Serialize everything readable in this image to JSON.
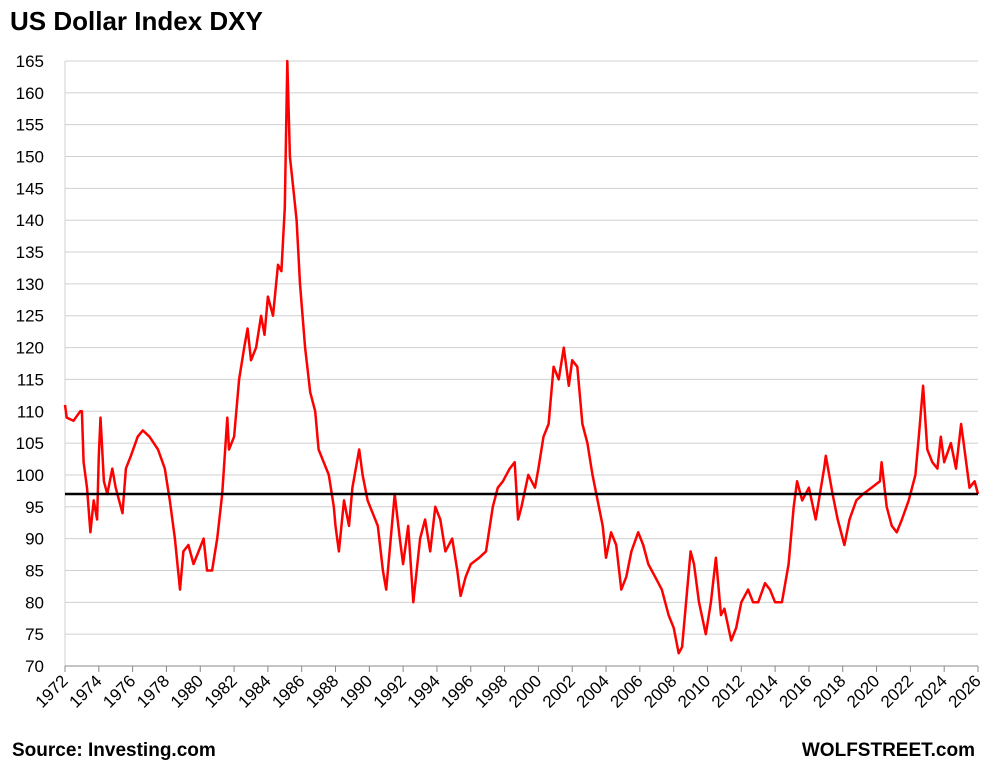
{
  "chart_data": {
    "type": "line",
    "title": "US Dollar Index DXY",
    "source": "Source: Investing.com",
    "credit": "WOLFSTREET.com",
    "x": [
      1972,
      1972.1,
      1972.5,
      1972.9,
      1973,
      1973.1,
      1973.3,
      1973.5,
      1973.7,
      1973.9,
      1974,
      1974.1,
      1974.3,
      1974.5,
      1974.8,
      1975,
      1975.2,
      1975.4,
      1975.6,
      1975.9,
      1976.3,
      1976.6,
      1977,
      1977.5,
      1977.9,
      1978.2,
      1978.5,
      1978.8,
      1979,
      1979.3,
      1979.6,
      1979.9,
      1980.2,
      1980.4,
      1980.7,
      1981,
      1981.3,
      1981.6,
      1981.7,
      1982,
      1982.3,
      1982.6,
      1982.8,
      1983,
      1983.3,
      1983.6,
      1983.8,
      1984,
      1984.3,
      1984.6,
      1984.8,
      1985,
      1985.15,
      1985.3,
      1985.5,
      1985.7,
      1985.9,
      1986.2,
      1986.5,
      1986.8,
      1987,
      1987.3,
      1987.6,
      1987.9,
      1988,
      1988.2,
      1988.5,
      1988.8,
      1989,
      1989.4,
      1989.6,
      1989.9,
      1990.2,
      1990.5,
      1990.8,
      1991,
      1991.2,
      1991.5,
      1991.8,
      1992,
      1992.3,
      1992.6,
      1992.8,
      1993,
      1993.3,
      1993.6,
      1993.9,
      1994.2,
      1994.5,
      1994.9,
      1995.2,
      1995.4,
      1995.7,
      1996,
      1996.5,
      1996.9,
      1997.3,
      1997.6,
      1997.9,
      1998.3,
      1998.6,
      1998.8,
      1999,
      1999.4,
      1999.8,
      2000,
      2000.3,
      2000.6,
      2000.9,
      2001.2,
      2001.5,
      2001.8,
      2002,
      2002.3,
      2002.6,
      2002.9,
      2003.2,
      2003.5,
      2003.8,
      2004,
      2004.3,
      2004.6,
      2004.9,
      2005.2,
      2005.5,
      2005.9,
      2006.2,
      2006.5,
      2006.9,
      2007.3,
      2007.7,
      2008,
      2008.3,
      2008.5,
      2008.8,
      2009,
      2009.2,
      2009.5,
      2009.9,
      2010.2,
      2010.5,
      2010.8,
      2011,
      2011.4,
      2011.7,
      2012,
      2012.4,
      2012.7,
      2013,
      2013.4,
      2013.7,
      2014,
      2014.4,
      2014.8,
      2015.1,
      2015.3,
      2015.6,
      2016,
      2016.4,
      2016.9,
      2017,
      2017.4,
      2017.7,
      2018.1,
      2018.4,
      2018.8,
      2019.2,
      2019.7,
      2020.2,
      2020.3,
      2020.6,
      2020.9,
      2021.2,
      2021.5,
      2021.9,
      2022.3,
      2022.5,
      2022.75,
      2023,
      2023.3,
      2023.6,
      2023.8,
      2024,
      2024.4,
      2024.7,
      2025,
      2025.2,
      2025.5,
      2025.8,
      2026
    ],
    "values": [
      111,
      109,
      108.5,
      110,
      110,
      102,
      98,
      91,
      96,
      93,
      103,
      109,
      99,
      97,
      101,
      98,
      96,
      94,
      101,
      103,
      106,
      107,
      106,
      104,
      101,
      96,
      90,
      82,
      88,
      89,
      86,
      88,
      90,
      85,
      85,
      90,
      97,
      109,
      104,
      106,
      115,
      120,
      123,
      118,
      120,
      125,
      122,
      128,
      125,
      133,
      132,
      142,
      165,
      150,
      145,
      140,
      130,
      120,
      113,
      110,
      104,
      102,
      100,
      95,
      92,
      88,
      96,
      92,
      98,
      104,
      100,
      96,
      94,
      92,
      85,
      82,
      88,
      97,
      90,
      86,
      92,
      80,
      85,
      90,
      93,
      88,
      95,
      93,
      88,
      90,
      85,
      81,
      84,
      86,
      87,
      88,
      95,
      98,
      99,
      101,
      102,
      93,
      95,
      100,
      98,
      101,
      106,
      108,
      117,
      115,
      120,
      114,
      118,
      117,
      108,
      105,
      100,
      96,
      92,
      87,
      91,
      89,
      82,
      84,
      88,
      91,
      89,
      86,
      84,
      82,
      78,
      76,
      72,
      73,
      82,
      88,
      86,
      80,
      75,
      80,
      87,
      78,
      79,
      74,
      76,
      80,
      82,
      80,
      80,
      83,
      82,
      80,
      80,
      86,
      95,
      99,
      96,
      98,
      93,
      101,
      103,
      97,
      93,
      89,
      93,
      96,
      97,
      98,
      99,
      102,
      95,
      92,
      91,
      93,
      96,
      100,
      106,
      114,
      104,
      102,
      101,
      106,
      102,
      105,
      101,
      108,
      104,
      98,
      99,
      97
    ],
    "color": "#ff0000",
    "reference_line": 97,
    "reference_color": "#000000",
    "xlim": [
      1972,
      2026
    ],
    "xticks": [
      1972,
      1974,
      1976,
      1978,
      1980,
      1982,
      1984,
      1986,
      1988,
      1990,
      1992,
      1994,
      1996,
      1998,
      2000,
      2002,
      2004,
      2006,
      2008,
      2010,
      2012,
      2014,
      2016,
      2018,
      2020,
      2022,
      2024,
      2026
    ],
    "ylim": [
      70,
      165
    ],
    "yticks": [
      70,
      75,
      80,
      85,
      90,
      95,
      100,
      105,
      110,
      115,
      120,
      125,
      130,
      135,
      140,
      145,
      150,
      155,
      160,
      165
    ],
    "grid": true
  }
}
